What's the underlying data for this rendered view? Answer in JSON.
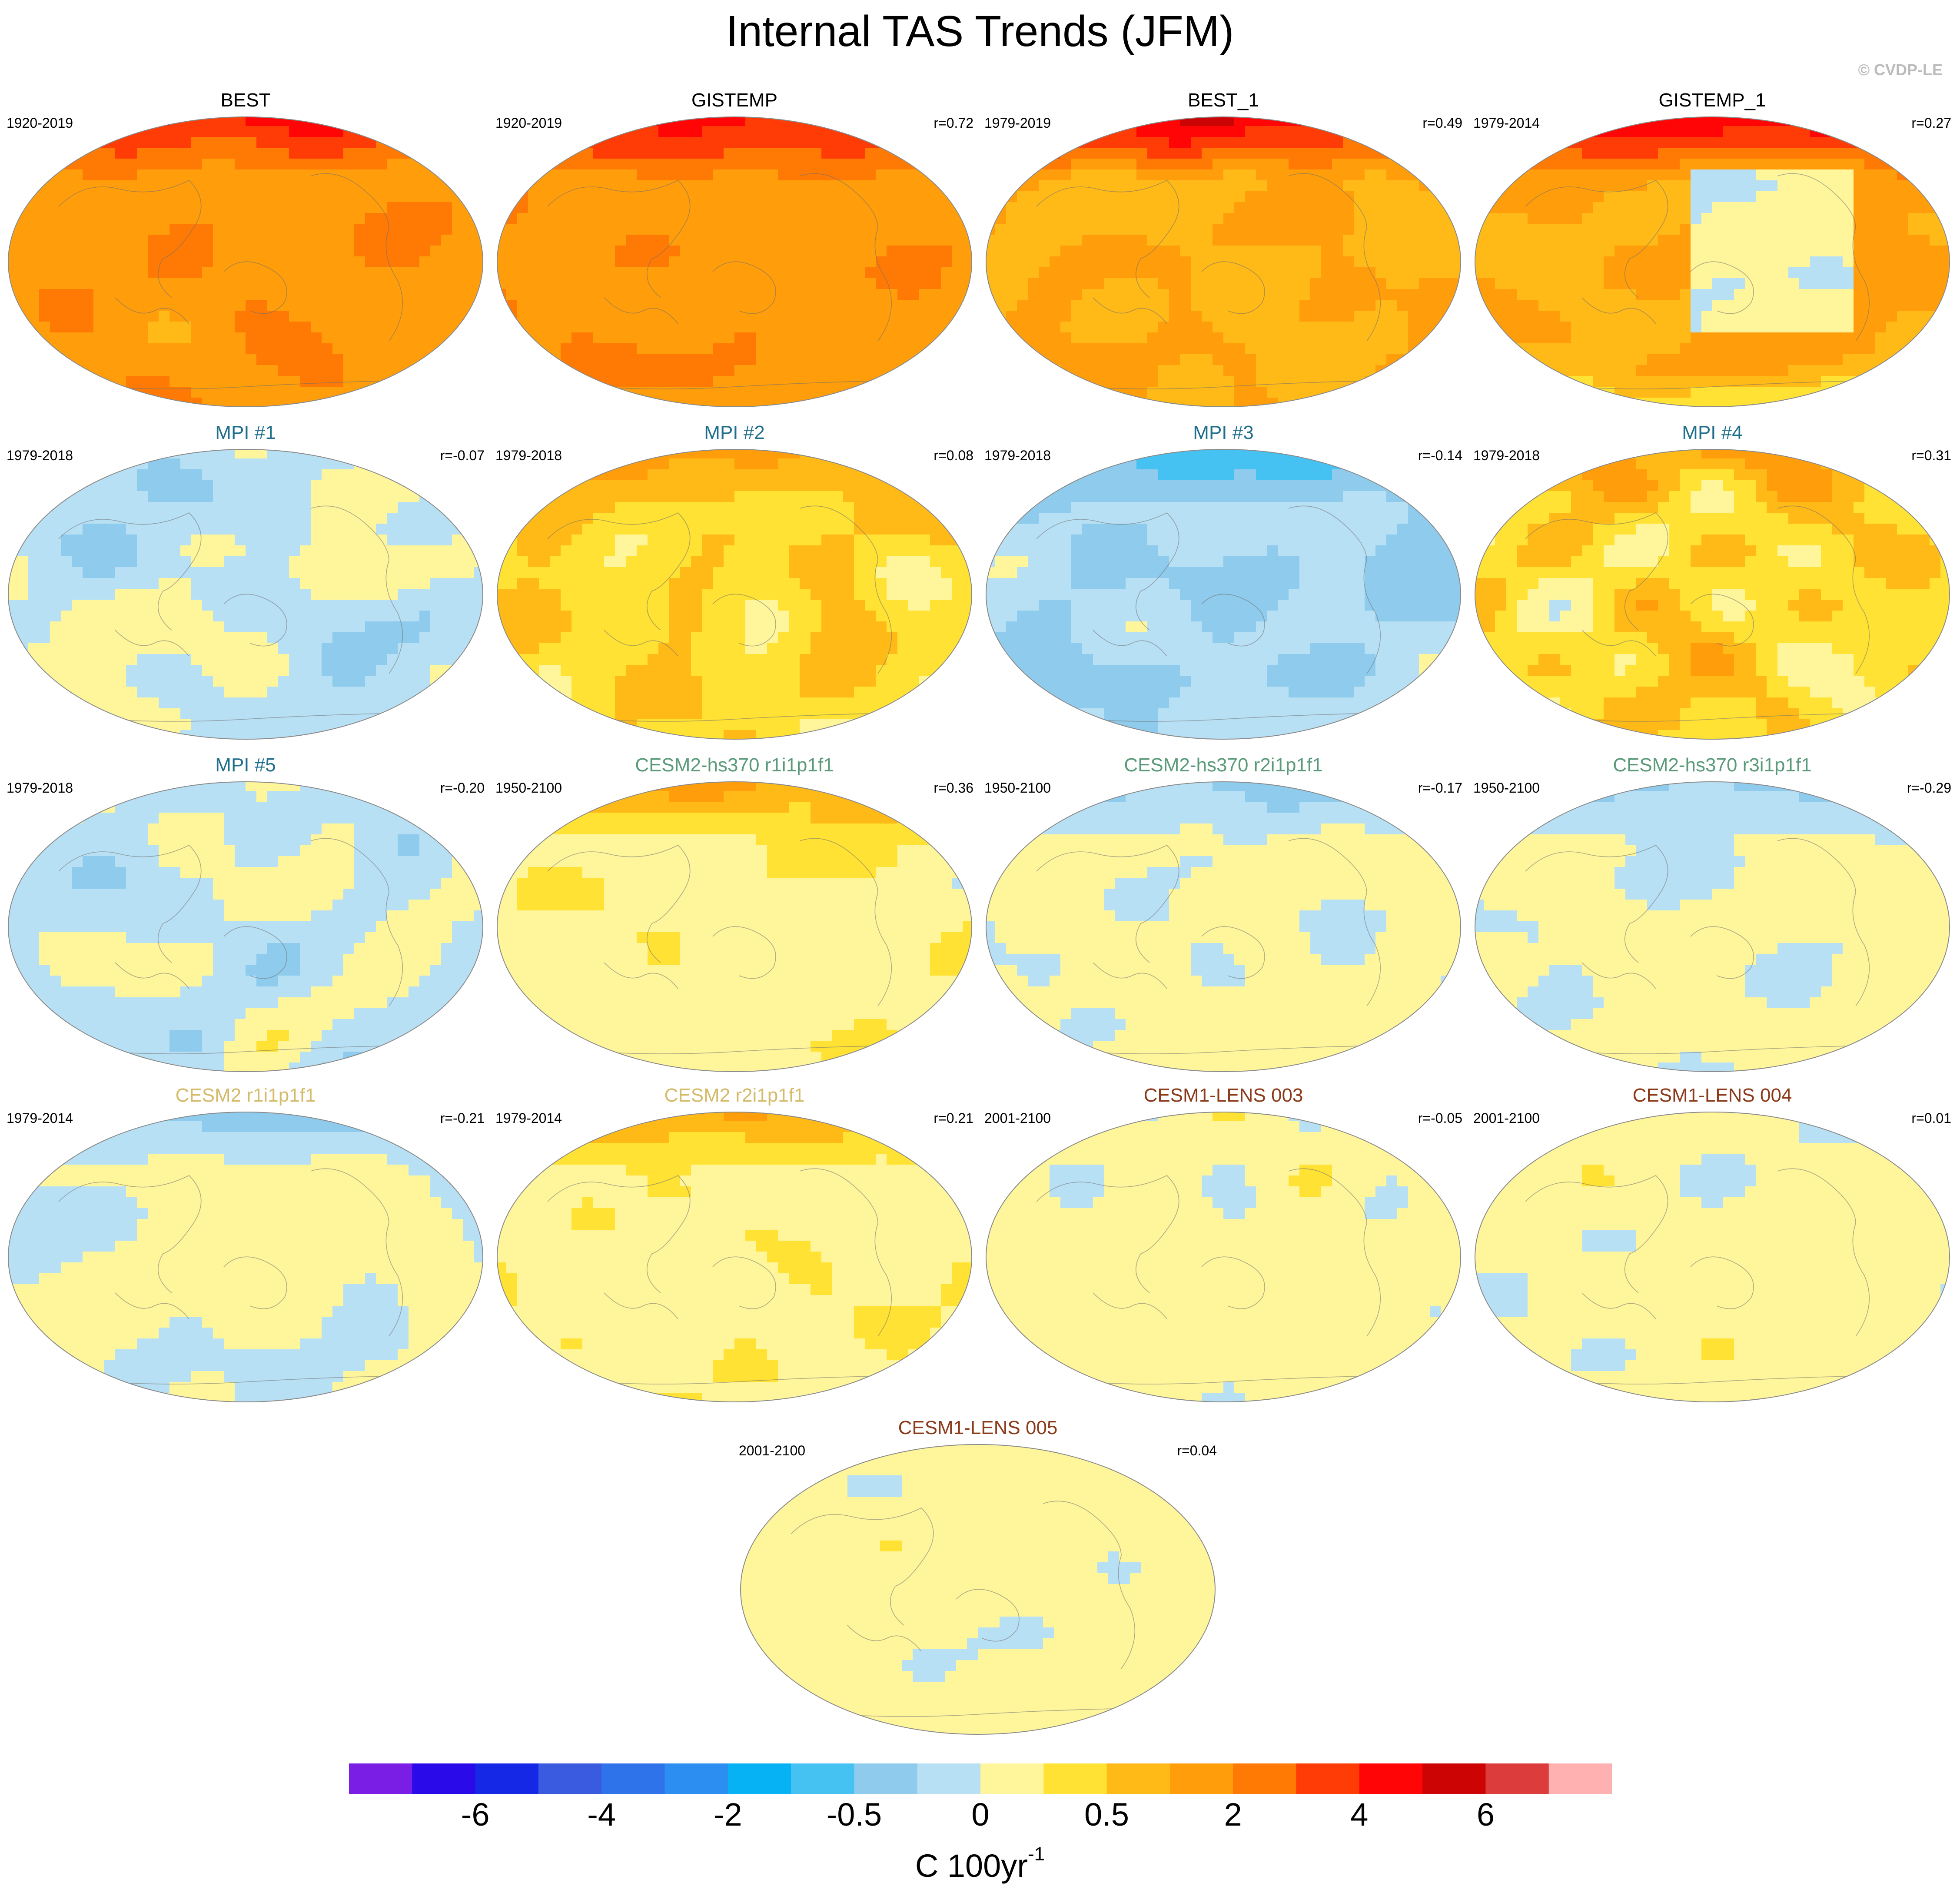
{
  "title": "Internal TAS Trends (JFM)",
  "watermark": "© CVDP-LE",
  "panels": [
    {
      "name": "BEST",
      "period": "1920-2019",
      "corr": "",
      "title_color": "#000000",
      "pattern": "warm-strong"
    },
    {
      "name": "GISTEMP",
      "period": "1920-2019",
      "corr": "r=0.72",
      "title_color": "#000000",
      "pattern": "warm-strong"
    },
    {
      "name": "BEST_1",
      "period": "1979-2019",
      "corr": "r=0.49",
      "title_color": "#000000",
      "pattern": "warm-arctic"
    },
    {
      "name": "GISTEMP_1",
      "period": "1979-2014",
      "corr": "r=0.27",
      "title_color": "#000000",
      "pattern": "warm-lanina"
    },
    {
      "name": "MPI #1",
      "period": "1979-2018",
      "corr": "r=-0.07",
      "title_color": "#1f6e8c",
      "pattern": "cool-mixed"
    },
    {
      "name": "MPI #2",
      "period": "1979-2018",
      "corr": "r=0.08",
      "title_color": "#1f6e8c",
      "pattern": "warm-mixed"
    },
    {
      "name": "MPI #3",
      "period": "1979-2018",
      "corr": "r=-0.14",
      "title_color": "#1f6e8c",
      "pattern": "cool-strong"
    },
    {
      "name": "MPI #4",
      "period": "1979-2018",
      "corr": "r=0.31",
      "title_color": "#1f6e8c",
      "pattern": "warm-mixed"
    },
    {
      "name": "MPI #5",
      "period": "1979-2018",
      "corr": "r=-0.20",
      "title_color": "#1f6e8c",
      "pattern": "cool-mixed"
    },
    {
      "name": "CESM2-hs370 r1i1p1f1",
      "period": "1950-2100",
      "corr": "r=0.36",
      "title_color": "#5a9a7a",
      "pattern": "weak-warm"
    },
    {
      "name": "CESM2-hs370 r2i1p1f1",
      "period": "1950-2100",
      "corr": "r=-0.17",
      "title_color": "#5a9a7a",
      "pattern": "weak-cool"
    },
    {
      "name": "CESM2-hs370 r3i1p1f1",
      "period": "1950-2100",
      "corr": "r=-0.29",
      "title_color": "#5a9a7a",
      "pattern": "weak-cool"
    },
    {
      "name": "CESM2 r1i1p1f1",
      "period": "1979-2014",
      "corr": "r=-0.21",
      "title_color": "#d4bb6a",
      "pattern": "weak-cool"
    },
    {
      "name": "CESM2 r2i1p1f1",
      "period": "1979-2014",
      "corr": "r=0.21",
      "title_color": "#d4bb6a",
      "pattern": "weak-warm"
    },
    {
      "name": "CESM1-LENS 003",
      "period": "2001-2100",
      "corr": "r=-0.05",
      "title_color": "#8b3a1a",
      "pattern": "weak-mixed"
    },
    {
      "name": "CESM1-LENS 004",
      "period": "2001-2100",
      "corr": "r=0.01",
      "title_color": "#8b3a1a",
      "pattern": "weak-mixed"
    },
    {
      "name": "CESM1-LENS 005",
      "period": "2001-2100",
      "corr": "r=0.04",
      "title_color": "#8b3a1a",
      "pattern": "weak-mixed"
    }
  ],
  "colorbar": {
    "colors": [
      "#7a1ee6",
      "#2a0ae8",
      "#1428e6",
      "#3a5ae0",
      "#2f73ea",
      "#2b8ef0",
      "#06b2f4",
      "#46c2f2",
      "#8ecbec",
      "#b8e0f4",
      "#fff69c",
      "#ffe234",
      "#ffba18",
      "#ff9e0a",
      "#ff7a05",
      "#ff3c06",
      "#ff0505",
      "#cc0404",
      "#dc3c3c",
      "#ffb0b0"
    ],
    "tick_labels": [
      "-6",
      "-4",
      "-2",
      "-0.5",
      "0",
      "0.5",
      "2",
      "4",
      "6"
    ],
    "units": "C 100yr",
    "units_exponent": "-1"
  }
}
